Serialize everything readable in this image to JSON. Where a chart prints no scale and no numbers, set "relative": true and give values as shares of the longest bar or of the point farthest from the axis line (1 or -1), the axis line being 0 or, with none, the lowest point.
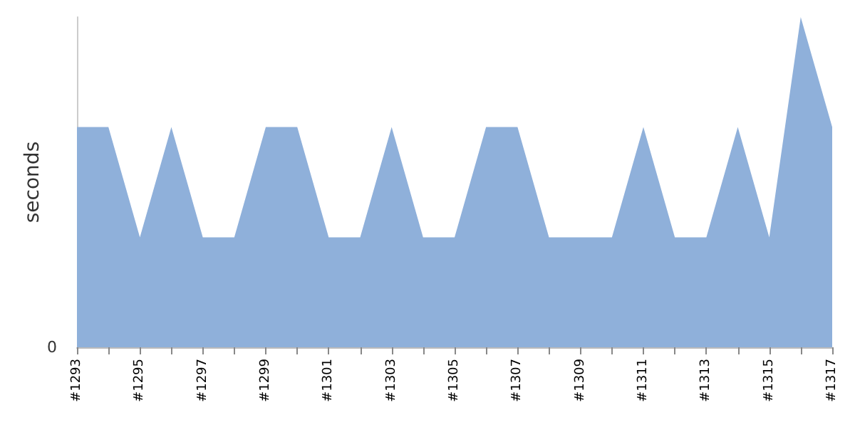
{
  "chart_data": {
    "type": "area",
    "ylabel": "seconds",
    "relative": true,
    "grid": false,
    "categories": [
      "#1293",
      null,
      "#1295",
      null,
      "#1297",
      null,
      "#1299",
      null,
      "#1301",
      null,
      "#1303",
      null,
      "#1305",
      null,
      "#1307",
      null,
      "#1309",
      null,
      "#1311",
      null,
      "#1313",
      null,
      "#1315",
      null,
      "#1317"
    ],
    "series": [
      {
        "color": "#8fb0da",
        "values": [
          0.667,
          0.667,
          0.333,
          0.667,
          0.333,
          0.333,
          0.667,
          0.667,
          0.333,
          0.333,
          0.667,
          0.333,
          0.333,
          0.667,
          0.667,
          0.333,
          0.333,
          0.333,
          0.667,
          0.333,
          0.333,
          0.667,
          0.333,
          1,
          0.667
        ]
      }
    ],
    "annotations": [
      "0"
    ]
  }
}
